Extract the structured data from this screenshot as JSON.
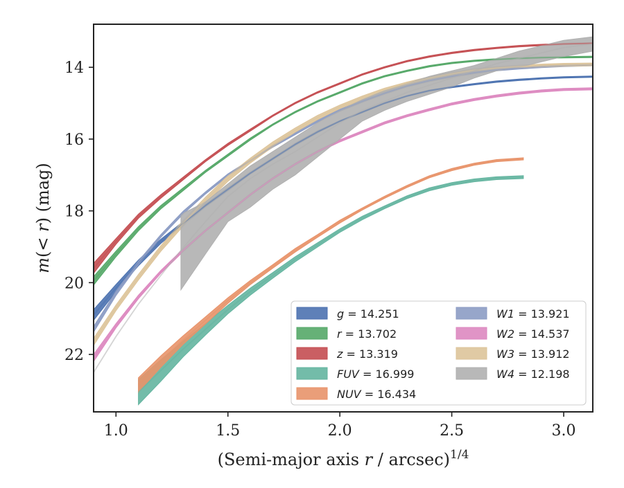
{
  "chart_data": {
    "type": "line",
    "title": "",
    "xlabel": "(Semi-major axis r / arcsec)^1/4",
    "xlabel_parts": {
      "pre": "(Semi-major axis ",
      "var": "r",
      "post": " / arcsec)",
      "sup": "1/4"
    },
    "ylabel": "m(< r) (mag)",
    "ylabel_parts": {
      "var": "m",
      "mid": "(< ",
      "var2": "r",
      "post": ") (mag)"
    },
    "xlim": [
      0.9,
      3.13
    ],
    "ylim": [
      23.6,
      12.8
    ],
    "y_inverted": true,
    "xticks": [
      1.0,
      1.5,
      2.0,
      2.5,
      3.0
    ],
    "xtick_labels": [
      "1.0",
      "1.5",
      "2.0",
      "2.5",
      "3.0"
    ],
    "yticks": [
      14,
      16,
      18,
      20,
      22
    ],
    "ytick_labels": [
      "14",
      "16",
      "18",
      "20",
      "22"
    ],
    "grid": false,
    "legend_position": "lower-right",
    "series": [
      {
        "name": "g = 14.251",
        "var": "g",
        "value": "14.251",
        "color": "#4c72b0",
        "x": [
          0.9,
          1.0,
          1.1,
          1.2,
          1.3,
          1.4,
          1.5,
          1.6,
          1.7,
          1.8,
          1.9,
          2.0,
          2.1,
          2.2,
          2.3,
          2.4,
          2.5,
          2.6,
          2.7,
          2.8,
          2.9,
          3.0,
          3.13
        ],
        "y": [
          20.9,
          20.15,
          19.45,
          18.85,
          18.35,
          17.85,
          17.4,
          16.95,
          16.55,
          16.15,
          15.8,
          15.5,
          15.25,
          15.0,
          14.8,
          14.65,
          14.55,
          14.47,
          14.4,
          14.35,
          14.31,
          14.28,
          14.26
        ],
        "band_width": [
          0.15,
          0.1,
          0.08,
          0.06,
          0.05,
          0.04,
          0.04,
          0.03,
          0.03,
          0.03,
          0.03,
          0.02,
          0.02,
          0.02,
          0.02,
          0.02,
          0.02,
          0.02,
          0.02,
          0.02,
          0.02,
          0.02,
          0.02
        ]
      },
      {
        "name": "r = 13.702",
        "var": "r",
        "value": "13.702",
        "color": "#55a868",
        "x": [
          0.9,
          1.0,
          1.1,
          1.2,
          1.3,
          1.4,
          1.5,
          1.6,
          1.7,
          1.8,
          1.9,
          2.0,
          2.1,
          2.2,
          2.3,
          2.4,
          2.5,
          2.6,
          2.7,
          2.8,
          2.9,
          3.0,
          3.13
        ],
        "y": [
          19.95,
          19.2,
          18.5,
          17.9,
          17.4,
          16.9,
          16.45,
          16.0,
          15.6,
          15.25,
          14.95,
          14.7,
          14.45,
          14.25,
          14.1,
          13.97,
          13.88,
          13.82,
          13.78,
          13.75,
          13.73,
          13.72,
          13.71
        ],
        "band_width": [
          0.12,
          0.08,
          0.06,
          0.05,
          0.04,
          0.03,
          0.03,
          0.03,
          0.02,
          0.02,
          0.02,
          0.02,
          0.02,
          0.02,
          0.02,
          0.02,
          0.02,
          0.02,
          0.02,
          0.02,
          0.02,
          0.02,
          0.02
        ]
      },
      {
        "name": "z = 13.319",
        "var": "z",
        "value": "13.319",
        "color": "#c44e52",
        "x": [
          0.9,
          1.0,
          1.1,
          1.2,
          1.3,
          1.4,
          1.5,
          1.6,
          1.7,
          1.8,
          1.9,
          2.0,
          2.1,
          2.2,
          2.3,
          2.4,
          2.5,
          2.6,
          2.7,
          2.8,
          2.9,
          3.0,
          3.13
        ],
        "y": [
          19.6,
          18.85,
          18.15,
          17.6,
          17.1,
          16.6,
          16.15,
          15.75,
          15.35,
          15.0,
          14.7,
          14.45,
          14.2,
          14.0,
          13.83,
          13.7,
          13.6,
          13.52,
          13.46,
          13.41,
          13.38,
          13.35,
          13.33
        ],
        "band_width": [
          0.14,
          0.08,
          0.06,
          0.05,
          0.04,
          0.03,
          0.03,
          0.03,
          0.02,
          0.02,
          0.02,
          0.02,
          0.02,
          0.02,
          0.02,
          0.02,
          0.02,
          0.02,
          0.02,
          0.02,
          0.02,
          0.02,
          0.02
        ]
      },
      {
        "name": "FUV = 16.999",
        "var": "FUV",
        "value": "16.999",
        "color": "#64b5a0",
        "x": [
          1.1,
          1.2,
          1.3,
          1.4,
          1.5,
          1.6,
          1.7,
          1.8,
          1.9,
          2.0,
          2.1,
          2.2,
          2.3,
          2.4,
          2.5,
          2.6,
          2.7,
          2.82
        ],
        "y": [
          23.05,
          22.45,
          21.85,
          21.3,
          20.75,
          20.25,
          19.8,
          19.35,
          18.95,
          18.55,
          18.2,
          17.9,
          17.62,
          17.4,
          17.25,
          17.15,
          17.09,
          17.06
        ],
        "band_width": [
          0.35,
          0.3,
          0.22,
          0.16,
          0.12,
          0.1,
          0.08,
          0.07,
          0.06,
          0.05,
          0.05,
          0.04,
          0.04,
          0.04,
          0.04,
          0.04,
          0.04,
          0.04
        ]
      },
      {
        "name": "NUV = 16.434",
        "var": "NUV",
        "value": "16.434",
        "color": "#e8936a",
        "x": [
          1.1,
          1.2,
          1.3,
          1.4,
          1.5,
          1.6,
          1.7,
          1.8,
          1.9,
          2.0,
          2.1,
          2.2,
          2.3,
          2.4,
          2.5,
          2.6,
          2.7,
          2.82
        ],
        "y": [
          22.85,
          22.2,
          21.6,
          21.05,
          20.5,
          20.0,
          19.55,
          19.1,
          18.7,
          18.3,
          17.95,
          17.62,
          17.32,
          17.05,
          16.85,
          16.7,
          16.6,
          16.55
        ],
        "band_width": [
          0.2,
          0.16,
          0.12,
          0.1,
          0.08,
          0.06,
          0.05,
          0.05,
          0.04,
          0.04,
          0.03,
          0.03,
          0.03,
          0.03,
          0.03,
          0.03,
          0.03,
          0.03
        ]
      },
      {
        "name": "W1 = 13.921",
        "var": "W1",
        "value": "13.921",
        "color": "#8c9cc4",
        "x": [
          0.9,
          1.0,
          1.1,
          1.2,
          1.3,
          1.4,
          1.5,
          1.6,
          1.7,
          1.8,
          1.9,
          2.0,
          2.1,
          2.2,
          2.3,
          2.4,
          2.5,
          2.6,
          2.7,
          2.8,
          2.9,
          3.0,
          3.13
        ],
        "y": [
          21.3,
          20.3,
          19.45,
          18.7,
          18.05,
          17.5,
          17.0,
          16.6,
          16.2,
          15.85,
          15.5,
          15.2,
          14.95,
          14.72,
          14.52,
          14.37,
          14.25,
          14.15,
          14.07,
          14.02,
          13.98,
          13.95,
          13.93
        ],
        "band_width": [
          0.08,
          0.06,
          0.05,
          0.04,
          0.04,
          0.03,
          0.03,
          0.03,
          0.03,
          0.03,
          0.03,
          0.03,
          0.03,
          0.03,
          0.03,
          0.03,
          0.03,
          0.03,
          0.03,
          0.03,
          0.03,
          0.03,
          0.03
        ]
      },
      {
        "name": "W2 = 14.537",
        "var": "W2",
        "value": "14.537",
        "color": "#dd88c0",
        "x": [
          0.9,
          1.0,
          1.1,
          1.2,
          1.3,
          1.4,
          1.5,
          1.6,
          1.7,
          1.8,
          1.9,
          2.0,
          2.1,
          2.2,
          2.3,
          2.4,
          2.5,
          2.6,
          2.7,
          2.8,
          2.9,
          3.0,
          3.13
        ],
        "y": [
          22.1,
          21.2,
          20.4,
          19.7,
          19.1,
          18.55,
          18.05,
          17.55,
          17.1,
          16.7,
          16.35,
          16.05,
          15.8,
          15.55,
          15.35,
          15.18,
          15.02,
          14.9,
          14.8,
          14.72,
          14.66,
          14.62,
          14.6
        ],
        "band_width": [
          0.1,
          0.06,
          0.05,
          0.04,
          0.04,
          0.03,
          0.03,
          0.03,
          0.03,
          0.03,
          0.03,
          0.03,
          0.03,
          0.03,
          0.03,
          0.03,
          0.03,
          0.03,
          0.03,
          0.03,
          0.03,
          0.03,
          0.03
        ]
      },
      {
        "name": "W3 = 13.912",
        "var": "W3",
        "value": "13.912",
        "color": "#ddc49a",
        "x": [
          0.9,
          1.0,
          1.1,
          1.2,
          1.3,
          1.4,
          1.5,
          1.6,
          1.7,
          1.8,
          1.9,
          2.0,
          2.1,
          2.2,
          2.3,
          2.4,
          2.5,
          2.6,
          2.7,
          2.8,
          2.9,
          3.0,
          3.13
        ],
        "y": [
          21.65,
          20.7,
          19.85,
          19.05,
          18.35,
          17.7,
          17.1,
          16.6,
          16.15,
          15.75,
          15.4,
          15.1,
          14.85,
          14.63,
          14.45,
          14.3,
          14.18,
          14.08,
          14.02,
          13.98,
          13.95,
          13.93,
          13.92
        ],
        "band_width": [
          0.1,
          0.08,
          0.08,
          0.08,
          0.08,
          0.08,
          0.08,
          0.07,
          0.07,
          0.06,
          0.06,
          0.05,
          0.05,
          0.05,
          0.04,
          0.04,
          0.04,
          0.04,
          0.04,
          0.04,
          0.04,
          0.04,
          0.04
        ]
      },
      {
        "name": "W4 = 12.198",
        "var": "W4",
        "value": "12.198",
        "color": "#b0b0b0",
        "x": [
          0.9,
          1.0,
          1.1,
          1.2,
          1.29,
          1.4,
          1.5,
          1.6,
          1.7,
          1.8,
          1.9,
          2.0,
          2.1,
          2.2,
          2.3,
          2.4,
          2.5,
          2.6,
          2.7,
          2.8,
          2.9,
          3.0,
          3.13
        ],
        "y": [
          22.5,
          21.5,
          20.6,
          19.8,
          19.1,
          18.3,
          17.6,
          17.1,
          16.7,
          16.35,
          15.95,
          15.55,
          15.2,
          14.95,
          14.7,
          14.5,
          14.3,
          14.1,
          13.9,
          13.75,
          13.6,
          13.45,
          13.35
        ],
        "band_low": [
          null,
          null,
          null,
          null,
          18.1,
          17.75,
          17.25,
          16.75,
          16.35,
          15.95,
          15.55,
          15.2,
          14.9,
          14.65,
          14.45,
          14.25,
          14.1,
          13.95,
          13.75,
          13.55,
          13.4,
          13.25,
          13.15
        ],
        "band_high": [
          null,
          null,
          null,
          null,
          20.2,
          19.2,
          18.3,
          17.9,
          17.4,
          17.0,
          16.5,
          16.0,
          15.5,
          15.2,
          14.95,
          14.75,
          14.55,
          14.3,
          14.1,
          14.0,
          13.85,
          13.7,
          13.55
        ],
        "band_start": 1.29
      }
    ]
  }
}
